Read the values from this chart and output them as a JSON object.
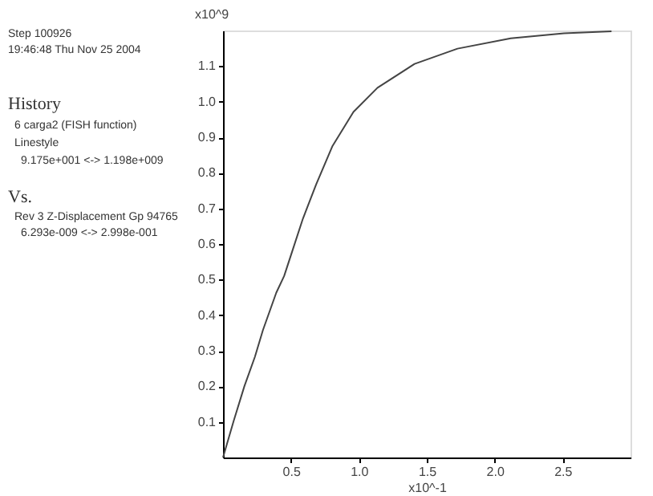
{
  "chart_data": {
    "type": "line",
    "xlabel": "x10^-1",
    "ylabel": "x10^9",
    "annotations": [
      "Step 100926",
      "19:46:48 Thu Nov 25 2004",
      "History",
      "6 carga2 (FISH function)",
      "Linestyle",
      "9.175e+001 <-> 1.198e+009",
      "Vs.",
      "Rev 3 Z-Displacement Gp 94765",
      "6.293e-009 <-> 2.998e-001"
    ],
    "series": [
      {
        "color": "#444444",
        "x": [
          0,
          0.078,
          0.157,
          0.235,
          0.294,
          0.392,
          0.45,
          0.51,
          0.588,
          0.686,
          0.804,
          0.96,
          1.137,
          1.41,
          1.726,
          2.118,
          2.51,
          2.86
        ],
        "values": [
          0,
          0.102,
          0.2,
          0.283,
          0.358,
          0.463,
          0.51,
          0.58,
          0.671,
          0.768,
          0.874,
          0.971,
          1.039,
          1.106,
          1.149,
          1.178,
          1.192,
          1.198
        ]
      }
    ],
    "xlim": [
      0,
      3.0
    ],
    "ylim": [
      0,
      1.2
    ],
    "xticks": [
      {
        "value": 0.5,
        "label": "0.5"
      },
      {
        "value": 1,
        "label": "1.0"
      },
      {
        "value": 1.5,
        "label": "1.5"
      },
      {
        "value": 2,
        "label": "2.0"
      },
      {
        "value": 2.5,
        "label": "2.5"
      }
    ],
    "yticks": [
      0.1,
      0.2,
      0.3,
      0.4,
      0.5,
      0.6,
      0.7,
      0.8,
      0.9,
      {
        "value": 1,
        "label": "1.0"
      },
      1.1
    ],
    "grid": false,
    "marker": "none",
    "line_style": "solid"
  }
}
